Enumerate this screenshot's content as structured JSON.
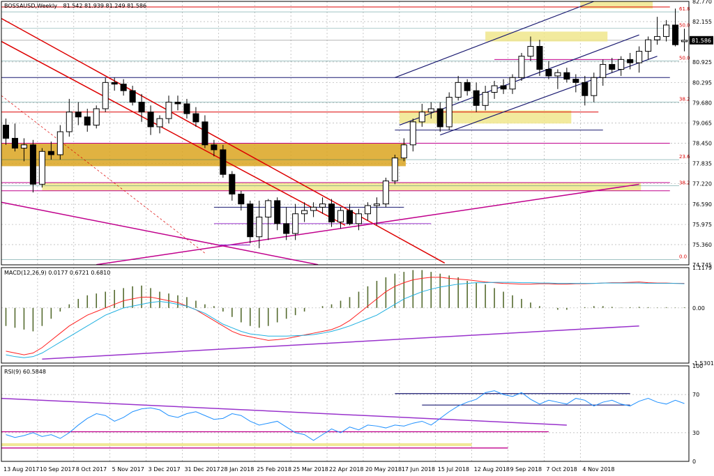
{
  "header": {
    "symbol_line": "BOSSAUSD,Weekly",
    "ohlc_line": "81.542 81.939 81.249 81.586"
  },
  "colors": {
    "bull_body": "#ffffff",
    "bear_body": "#000000",
    "zone_dark": "#DAA520",
    "zone_light": "#F0E68C",
    "channel": "#191970",
    "downtrend": "#DD0000",
    "magenta": "#C0008C",
    "purple": "#9932CC",
    "fib": "#DD0000",
    "fib_dark": "#006060",
    "macd_hist": "#556B2F",
    "macd_signal": "#FF2020",
    "macd_line": "#20B0E0",
    "rsi_line": "#1E90FF",
    "grid": "#B0B0B0"
  },
  "chart_data": [
    {
      "type": "candlestick",
      "name": "price",
      "ylim": [
        74.745,
        82.77
      ],
      "y_ticks": [
        "82.770",
        "82.155",
        "81.586",
        "80.925",
        "80.295",
        "79.680",
        "79.065",
        "78.450",
        "77.835",
        "77.220",
        "76.590",
        "75.975",
        "75.360",
        "74.745"
      ],
      "y_tick_values": [
        82.77,
        82.155,
        81.586,
        80.925,
        80.295,
        79.68,
        79.065,
        78.45,
        77.835,
        77.22,
        76.59,
        75.975,
        75.36,
        74.745
      ],
      "current_price": "81.586",
      "x_labels": [
        "13 Aug 2017",
        "10 Sep 2017",
        "8 Oct 2017",
        "5 Nov 2017",
        "3 Dec 2017",
        "31 Dec 2017",
        "28 Jan 2018",
        "25 Feb 2018",
        "25 Mar 2018",
        "22 Apr 2018",
        "20 May 2018",
        "17 Jun 2018",
        "15 Jul 2018",
        "12 Aug 2018",
        "9 Sep 2018",
        "7 Oct 2018",
        "4 Nov 2018"
      ],
      "x_label_index": [
        0,
        4,
        8,
        12,
        16,
        20,
        24,
        28,
        32,
        36,
        40,
        44,
        48,
        52,
        56,
        60,
        64
      ],
      "fib_levels": [
        {
          "label": "61.8",
          "value": 82.45
        },
        {
          "label": "50.0",
          "value": 81.95
        },
        {
          "label": "50.0",
          "value": 80.95
        },
        {
          "label": "38.2",
          "value": 79.7
        },
        {
          "label": "23.6",
          "value": 77.95
        },
        {
          "label": "38.2",
          "value": 77.15
        },
        {
          "label": "0.0",
          "value": 74.9
        }
      ],
      "candles": [
        {
          "o": 79.0,
          "h": 79.2,
          "l": 78.4,
          "c": 78.6
        },
        {
          "o": 78.6,
          "h": 79.05,
          "l": 78.2,
          "c": 78.3
        },
        {
          "o": 78.3,
          "h": 78.6,
          "l": 77.9,
          "c": 78.4
        },
        {
          "o": 78.4,
          "h": 78.55,
          "l": 76.95,
          "c": 77.2
        },
        {
          "o": 77.2,
          "h": 78.3,
          "l": 77.1,
          "c": 78.2
        },
        {
          "o": 78.2,
          "h": 78.5,
          "l": 77.95,
          "c": 78.1
        },
        {
          "o": 78.1,
          "h": 79.0,
          "l": 77.95,
          "c": 78.8
        },
        {
          "o": 78.8,
          "h": 79.8,
          "l": 78.65,
          "c": 79.4
        },
        {
          "o": 79.4,
          "h": 79.7,
          "l": 79.0,
          "c": 79.25
        },
        {
          "o": 79.25,
          "h": 79.5,
          "l": 78.8,
          "c": 79.0
        },
        {
          "o": 79.0,
          "h": 79.6,
          "l": 78.9,
          "c": 79.5
        },
        {
          "o": 79.5,
          "h": 80.45,
          "l": 79.4,
          "c": 80.3
        },
        {
          "o": 80.3,
          "h": 80.45,
          "l": 80.05,
          "c": 80.25
        },
        {
          "o": 80.25,
          "h": 80.4,
          "l": 79.9,
          "c": 80.05
        },
        {
          "o": 80.05,
          "h": 80.2,
          "l": 79.6,
          "c": 79.7
        },
        {
          "o": 79.7,
          "h": 79.95,
          "l": 79.1,
          "c": 79.4
        },
        {
          "o": 79.4,
          "h": 79.6,
          "l": 78.7,
          "c": 78.95
        },
        {
          "o": 78.95,
          "h": 79.3,
          "l": 78.75,
          "c": 79.2
        },
        {
          "o": 79.2,
          "h": 79.9,
          "l": 79.05,
          "c": 79.7
        },
        {
          "o": 79.7,
          "h": 79.9,
          "l": 79.45,
          "c": 79.65
        },
        {
          "o": 79.65,
          "h": 79.8,
          "l": 79.2,
          "c": 79.35
        },
        {
          "o": 79.35,
          "h": 79.55,
          "l": 78.95,
          "c": 79.1
        },
        {
          "o": 79.1,
          "h": 79.3,
          "l": 78.3,
          "c": 78.4
        },
        {
          "o": 78.4,
          "h": 78.55,
          "l": 78.05,
          "c": 78.25
        },
        {
          "o": 78.25,
          "h": 78.4,
          "l": 77.4,
          "c": 77.5
        },
        {
          "o": 77.5,
          "h": 77.6,
          "l": 76.7,
          "c": 76.9
        },
        {
          "o": 76.9,
          "h": 77.0,
          "l": 76.4,
          "c": 76.6
        },
        {
          "o": 76.6,
          "h": 76.7,
          "l": 75.4,
          "c": 75.6
        },
        {
          "o": 75.6,
          "h": 76.7,
          "l": 75.25,
          "c": 76.2
        },
        {
          "o": 76.2,
          "h": 76.75,
          "l": 75.5,
          "c": 76.7
        },
        {
          "o": 76.7,
          "h": 76.8,
          "l": 75.8,
          "c": 76.0
        },
        {
          "o": 76.0,
          "h": 76.5,
          "l": 75.5,
          "c": 75.7
        },
        {
          "o": 75.7,
          "h": 76.6,
          "l": 75.5,
          "c": 76.3
        },
        {
          "o": 76.3,
          "h": 76.65,
          "l": 76.05,
          "c": 76.4
        },
        {
          "o": 76.4,
          "h": 76.65,
          "l": 76.2,
          "c": 76.5
        },
        {
          "o": 76.5,
          "h": 76.8,
          "l": 76.3,
          "c": 76.6
        },
        {
          "o": 76.6,
          "h": 76.75,
          "l": 75.9,
          "c": 76.05
        },
        {
          "o": 76.05,
          "h": 76.5,
          "l": 75.85,
          "c": 76.4
        },
        {
          "o": 76.4,
          "h": 76.6,
          "l": 75.95,
          "c": 76.0
        },
        {
          "o": 76.0,
          "h": 76.45,
          "l": 75.8,
          "c": 76.3
        },
        {
          "o": 76.3,
          "h": 76.65,
          "l": 76.1,
          "c": 76.55
        },
        {
          "o": 76.55,
          "h": 76.8,
          "l": 75.95,
          "c": 76.6
        },
        {
          "o": 76.6,
          "h": 77.4,
          "l": 76.5,
          "c": 77.3
        },
        {
          "o": 77.3,
          "h": 78.1,
          "l": 77.2,
          "c": 78.0
        },
        {
          "o": 78.0,
          "h": 78.6,
          "l": 77.9,
          "c": 78.4
        },
        {
          "o": 78.4,
          "h": 79.2,
          "l": 78.2,
          "c": 79.1
        },
        {
          "o": 79.1,
          "h": 79.65,
          "l": 78.95,
          "c": 79.4
        },
        {
          "o": 79.4,
          "h": 79.7,
          "l": 79.2,
          "c": 79.5
        },
        {
          "o": 79.5,
          "h": 79.7,
          "l": 78.8,
          "c": 78.95
        },
        {
          "o": 78.95,
          "h": 80.0,
          "l": 78.85,
          "c": 79.85
        },
        {
          "o": 79.85,
          "h": 80.5,
          "l": 79.75,
          "c": 80.3
        },
        {
          "o": 80.3,
          "h": 80.4,
          "l": 79.9,
          "c": 80.05
        },
        {
          "o": 80.05,
          "h": 80.3,
          "l": 79.4,
          "c": 79.6
        },
        {
          "o": 79.6,
          "h": 80.2,
          "l": 79.45,
          "c": 80.0
        },
        {
          "o": 80.0,
          "h": 80.35,
          "l": 79.8,
          "c": 80.2
        },
        {
          "o": 80.2,
          "h": 80.4,
          "l": 79.95,
          "c": 80.1
        },
        {
          "o": 80.1,
          "h": 80.55,
          "l": 79.95,
          "c": 80.45
        },
        {
          "o": 80.45,
          "h": 81.2,
          "l": 80.35,
          "c": 81.1
        },
        {
          "o": 81.1,
          "h": 81.7,
          "l": 80.95,
          "c": 81.4
        },
        {
          "o": 81.4,
          "h": 81.6,
          "l": 80.5,
          "c": 80.7
        },
        {
          "o": 80.7,
          "h": 80.95,
          "l": 80.4,
          "c": 80.5
        },
        {
          "o": 80.5,
          "h": 80.7,
          "l": 80.1,
          "c": 80.6
        },
        {
          "o": 80.6,
          "h": 80.75,
          "l": 80.3,
          "c": 80.4
        },
        {
          "o": 80.4,
          "h": 80.55,
          "l": 80.0,
          "c": 80.3
        },
        {
          "o": 80.3,
          "h": 80.5,
          "l": 79.6,
          "c": 79.9
        },
        {
          "o": 79.9,
          "h": 80.6,
          "l": 79.7,
          "c": 80.45
        },
        {
          "o": 80.45,
          "h": 81.0,
          "l": 80.2,
          "c": 80.85
        },
        {
          "o": 80.85,
          "h": 81.05,
          "l": 80.6,
          "c": 80.7
        },
        {
          "o": 80.7,
          "h": 81.1,
          "l": 80.5,
          "c": 81.0
        },
        {
          "o": 81.0,
          "h": 81.2,
          "l": 80.7,
          "c": 80.9
        },
        {
          "o": 80.9,
          "h": 81.4,
          "l": 80.6,
          "c": 81.25
        },
        {
          "o": 81.25,
          "h": 81.7,
          "l": 81.0,
          "c": 81.6
        },
        {
          "o": 81.6,
          "h": 82.3,
          "l": 81.45,
          "c": 81.7
        },
        {
          "o": 81.7,
          "h": 82.2,
          "l": 81.55,
          "c": 82.05
        },
        {
          "o": 82.05,
          "h": 82.55,
          "l": 81.4,
          "c": 81.45
        },
        {
          "o": 81.542,
          "h": 81.939,
          "l": 81.249,
          "c": 81.586
        }
      ]
    },
    {
      "type": "line",
      "name": "macd",
      "title": "MACD(12,26,9) 0.0177 0.6721 0.6810",
      "ylim": [
        -1.5301,
        1.1179
      ],
      "y_ticks": [
        "1.1179",
        "0.00",
        "-1.5301"
      ],
      "y_tick_values": [
        1.1179,
        0,
        -1.5301
      ],
      "histogram": [
        -0.5,
        -0.55,
        -0.6,
        -0.65,
        -0.5,
        -0.3,
        -0.1,
        0.1,
        0.25,
        0.35,
        0.4,
        0.45,
        0.5,
        0.55,
        0.6,
        0.62,
        0.55,
        0.45,
        0.4,
        0.35,
        0.3,
        0.2,
        0.1,
        0.05,
        -0.1,
        -0.25,
        -0.4,
        -0.5,
        -0.55,
        -0.5,
        -0.4,
        -0.3,
        -0.2,
        -0.1,
        0,
        0.05,
        0.1,
        0.2,
        0.3,
        0.45,
        0.6,
        0.75,
        0.85,
        0.95,
        1.0,
        1.05,
        1.05,
        1.0,
        0.95,
        0.9,
        0.85,
        0.75,
        0.7,
        0.65,
        0.55,
        0.45,
        0.35,
        0.25,
        0.15,
        0.05,
        0.0,
        -0.05,
        -0.05,
        0.0,
        0.02,
        0.05,
        0.05,
        0.03,
        0.01,
        0.02,
        0.03,
        0.02,
        0.01,
        0.02,
        0.01,
        0.0177
      ],
      "signal": [
        -1.2,
        -1.25,
        -1.3,
        -1.25,
        -1.1,
        -0.9,
        -0.7,
        -0.5,
        -0.35,
        -0.2,
        -0.1,
        0.0,
        0.1,
        0.2,
        0.25,
        0.3,
        0.3,
        0.25,
        0.2,
        0.15,
        0.05,
        -0.05,
        -0.2,
        -0.35,
        -0.5,
        -0.65,
        -0.75,
        -0.8,
        -0.85,
        -0.9,
        -0.88,
        -0.85,
        -0.8,
        -0.75,
        -0.7,
        -0.65,
        -0.6,
        -0.5,
        -0.35,
        -0.15,
        0.05,
        0.25,
        0.45,
        0.6,
        0.7,
        0.78,
        0.82,
        0.85,
        0.85,
        0.82,
        0.8,
        0.78,
        0.75,
        0.72,
        0.7,
        0.68,
        0.67,
        0.66,
        0.66,
        0.67,
        0.67,
        0.66,
        0.66,
        0.67,
        0.67,
        0.68,
        0.69,
        0.7,
        0.7,
        0.71,
        0.72,
        0.7,
        0.69,
        0.69,
        0.68,
        0.681
      ],
      "macd": [
        -1.3,
        -1.35,
        -1.38,
        -1.35,
        -1.25,
        -1.1,
        -0.95,
        -0.8,
        -0.65,
        -0.5,
        -0.35,
        -0.2,
        -0.1,
        0.0,
        0.05,
        0.1,
        0.15,
        0.18,
        0.15,
        0.1,
        0.05,
        -0.05,
        -0.15,
        -0.3,
        -0.45,
        -0.55,
        -0.65,
        -0.72,
        -0.75,
        -0.78,
        -0.78,
        -0.78,
        -0.77,
        -0.76,
        -0.74,
        -0.7,
        -0.65,
        -0.58,
        -0.5,
        -0.4,
        -0.3,
        -0.2,
        -0.05,
        0.1,
        0.25,
        0.35,
        0.45,
        0.52,
        0.58,
        0.62,
        0.66,
        0.68,
        0.7,
        0.7,
        0.71,
        0.71,
        0.71,
        0.7,
        0.7,
        0.69,
        0.69,
        0.68,
        0.68,
        0.68,
        0.68,
        0.68,
        0.69,
        0.69,
        0.69,
        0.69,
        0.69,
        0.68,
        0.68,
        0.68,
        0.68,
        0.6721
      ]
    },
    {
      "type": "line",
      "name": "rsi",
      "title": "RSI(9) 60.5848",
      "ylim": [
        0,
        100
      ],
      "y_ticks": [
        "100",
        "70",
        "30",
        "0"
      ],
      "y_tick_values": [
        100,
        70,
        30,
        0
      ],
      "values": [
        28,
        25,
        27,
        30,
        26,
        28,
        24,
        30,
        38,
        45,
        50,
        48,
        42,
        46,
        52,
        55,
        56,
        54,
        48,
        46,
        50,
        52,
        48,
        44,
        45,
        50,
        48,
        42,
        38,
        40,
        42,
        36,
        30,
        28,
        22,
        28,
        34,
        30,
        36,
        33,
        38,
        37,
        35,
        38,
        37,
        40,
        42,
        38,
        45,
        52,
        58,
        62,
        65,
        72,
        74,
        70,
        68,
        72,
        65,
        60,
        64,
        62,
        60,
        66,
        64,
        58,
        62,
        64,
        60,
        58,
        63,
        66,
        62,
        60,
        64,
        60.58
      ]
    }
  ]
}
